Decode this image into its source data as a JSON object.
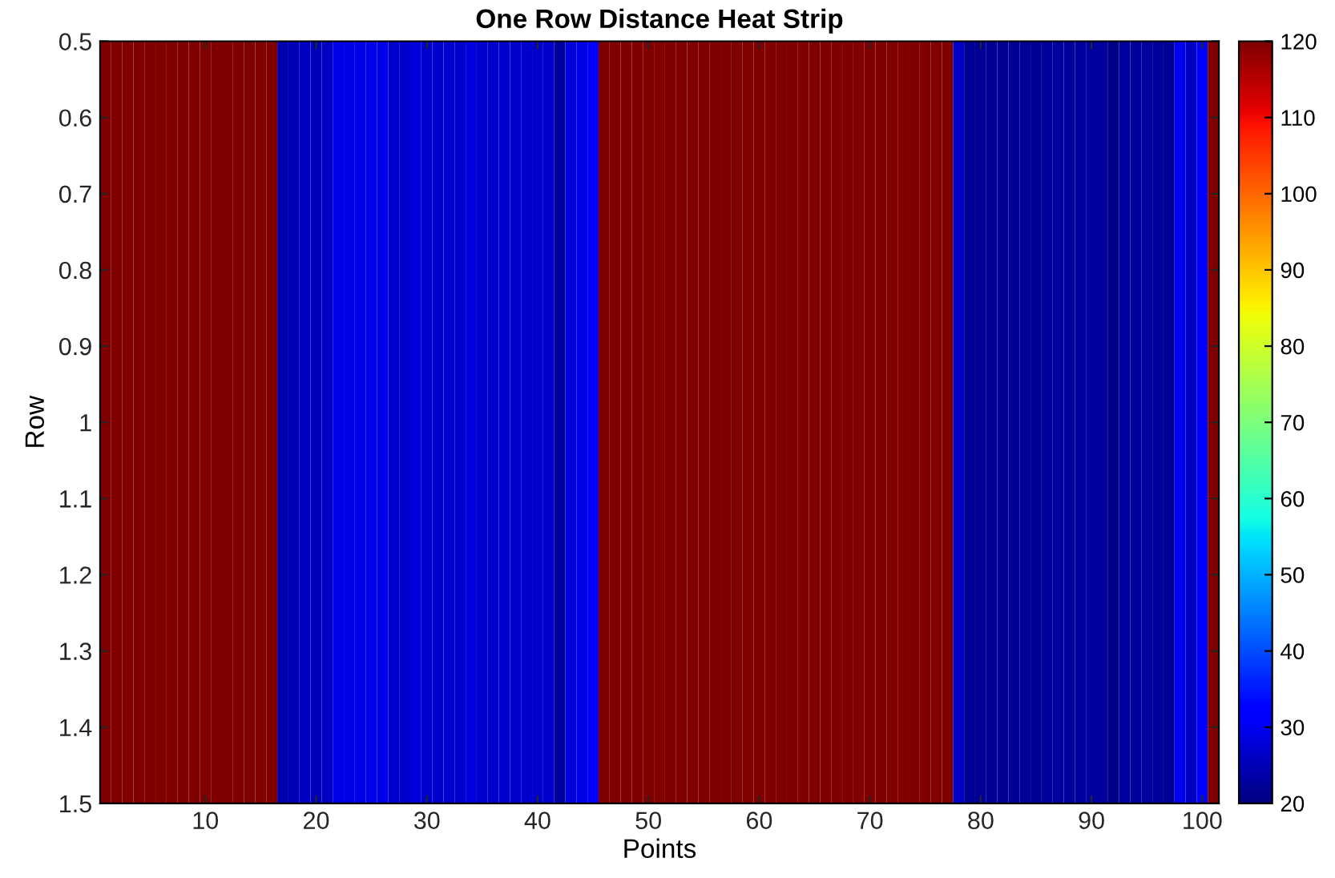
{
  "chart_data": {
    "type": "heatmap",
    "title": "One Row Distance Heat Strip",
    "xlabel": "Points",
    "ylabel": "Row",
    "x": [
      1,
      2,
      3,
      4,
      5,
      6,
      7,
      8,
      9,
      10,
      11,
      12,
      13,
      14,
      15,
      16,
      17,
      18,
      19,
      20,
      21,
      22,
      23,
      24,
      25,
      26,
      27,
      28,
      29,
      30,
      31,
      32,
      33,
      34,
      35,
      36,
      37,
      38,
      39,
      40,
      41,
      42,
      43,
      44,
      45,
      46,
      47,
      48,
      49,
      50,
      51,
      52,
      53,
      54,
      55,
      56,
      57,
      58,
      59,
      60,
      61,
      62,
      63,
      64,
      65,
      66,
      67,
      68,
      69,
      70,
      71,
      72,
      73,
      74,
      75,
      76,
      77,
      78,
      79,
      80,
      81,
      82,
      83,
      84,
      85,
      86,
      87,
      88,
      89,
      90,
      91,
      92,
      93,
      94,
      95,
      96,
      97,
      98,
      99,
      100,
      101
    ],
    "cells": [
      [
        120,
        120,
        120,
        120,
        120,
        120,
        120,
        120,
        120,
        120,
        120,
        120,
        120,
        120,
        120,
        120,
        24,
        25,
        26,
        25,
        26,
        29,
        29,
        29,
        29,
        29,
        27,
        27,
        28,
        27,
        27,
        27,
        27,
        28,
        27,
        27,
        27,
        27,
        27,
        27,
        27,
        23,
        28,
        29,
        31,
        120,
        120,
        120,
        120,
        120,
        120,
        120,
        120,
        120,
        120,
        120,
        120,
        120,
        120,
        120,
        120,
        120,
        120,
        120,
        120,
        120,
        120,
        120,
        120,
        120,
        120,
        120,
        120,
        120,
        120,
        120,
        120,
        26,
        22,
        22,
        22,
        22,
        22,
        22,
        22,
        23,
        23,
        23,
        23,
        23,
        23,
        21,
        23,
        23,
        23,
        23,
        22,
        30,
        26,
        31,
        120
      ]
    ],
    "xlim": [
      0.5,
      101.5
    ],
    "xticks": [
      10,
      20,
      30,
      40,
      50,
      60,
      70,
      80,
      90,
      100
    ],
    "ylim": [
      1.5,
      0.5
    ],
    "yticks": [
      0.5,
      0.6,
      0.7,
      0.8,
      0.9,
      1,
      1.1,
      1.2,
      1.3,
      1.4,
      1.5
    ],
    "clim": [
      20,
      120
    ],
    "cticks": [
      20,
      30,
      40,
      50,
      60,
      70,
      80,
      90,
      100,
      110,
      120
    ]
  }
}
